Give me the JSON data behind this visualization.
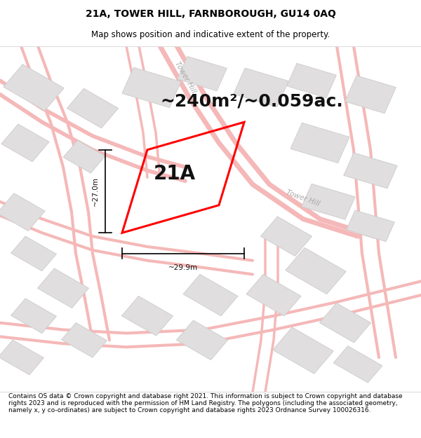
{
  "title_line1": "21A, TOWER HILL, FARNBOROUGH, GU14 0AQ",
  "title_line2": "Map shows position and indicative extent of the property.",
  "area_text": "~240m²/~0.059ac.",
  "label_text": "21A",
  "dim_width": "~29.9m",
  "dim_height": "~27.0m",
  "footer": "Contains OS data © Crown copyright and database right 2021. This information is subject to Crown copyright and database rights 2023 and is reproduced with the permission of HM Land Registry. The polygons (including the associated geometry, namely x, y co-ordinates) are subject to Crown copyright and database rights 2023 Ordnance Survey 100026316.",
  "bg_color": "#ffffff",
  "map_bg": "#ffffff",
  "plot_color": "#ff0000",
  "road_color": "#f5b8b8",
  "road_lw": 1.2,
  "building_color": "#e0dede",
  "building_edge": "#cccccc",
  "street_color": "#aaaaaa",
  "street_label1": "Tower Hill",
  "street_label2": "Tower Hill",
  "title_fontsize": 10,
  "subtitle_fontsize": 8.5,
  "area_fontsize": 18,
  "label_fontsize": 20,
  "footer_fontsize": 6.5
}
